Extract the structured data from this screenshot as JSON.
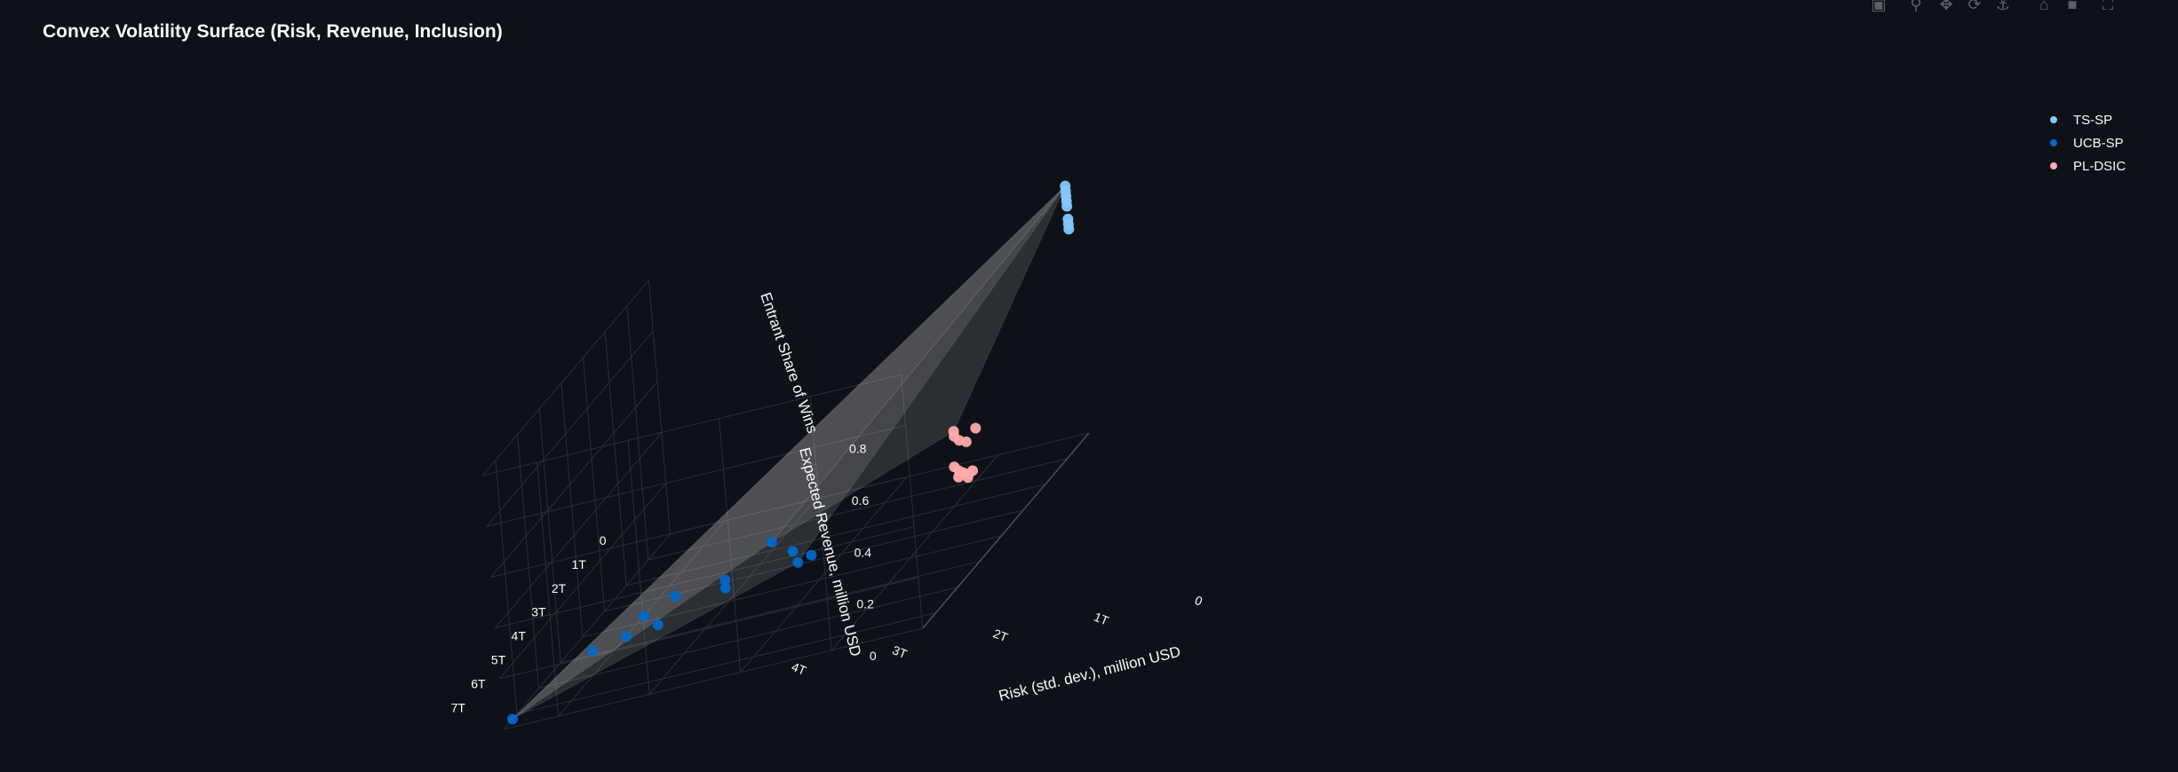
{
  "title": "Convex Volatility Surface (Risk, Revenue, Inclusion)",
  "toolbar": {
    "buttons": [
      {
        "name": "download-plot-as-png",
        "icon": "camera-icon"
      },
      {
        "name": "zoom",
        "icon": "magnifier-icon"
      },
      {
        "name": "pan",
        "icon": "pan-icon"
      },
      {
        "name": "orbital-rotation",
        "icon": "orbit-icon"
      },
      {
        "name": "turntable-rotation",
        "icon": "turntable-icon"
      },
      {
        "name": "reset-camera",
        "icon": "home-icon"
      },
      {
        "name": "reset-camera-last-save",
        "icon": "video-camera-icon"
      },
      {
        "name": "fullscreen",
        "icon": "fullscreen-icon"
      }
    ]
  },
  "colors": {
    "background": "#0e1117",
    "TS-SP": "#83c9ff",
    "UCB-SP": "#0068c9",
    "PL-DSIC": "#ffabab",
    "surface": "#c8c8c8"
  },
  "chart_data": {
    "type": "scatter3d",
    "title": "Convex Volatility Surface (Risk, Revenue, Inclusion)",
    "x_axis": {
      "label": "Risk (std. dev.), million USD",
      "ticks": [
        "0",
        "1T",
        "2T",
        "3T",
        "4T"
      ]
    },
    "y_axis": {
      "label": "Expected Revenue, million USD",
      "ticks": [
        "0",
        "1T",
        "2T",
        "3T",
        "4T",
        "5T",
        "6T",
        "7T"
      ]
    },
    "z_axis": {
      "label": "Entrant Share of Wins",
      "ticks": [
        "0",
        "0.2",
        "0.4",
        "0.6",
        "0.8"
      ]
    },
    "legend_position": "top-right",
    "series": [
      {
        "name": "TS-SP",
        "color": "#83c9ff",
        "points": [
          {
            "x": 0.02,
            "y": 0.05,
            "z": 0.98
          },
          {
            "x": 0.02,
            "y": 0.05,
            "z": 0.96
          },
          {
            "x": 0.02,
            "y": 0.05,
            "z": 0.94
          },
          {
            "x": 0.02,
            "y": 0.05,
            "z": 0.92
          },
          {
            "x": 0.02,
            "y": 0.05,
            "z": 0.9
          },
          {
            "x": 0.02,
            "y": 0.05,
            "z": 0.85
          },
          {
            "x": 0.02,
            "y": 0.05,
            "z": 0.83
          },
          {
            "x": 0.02,
            "y": 0.05,
            "z": 0.81
          }
        ]
      },
      {
        "name": "UCB-SP",
        "color": "#0068c9",
        "points": [
          {
            "x": 4.6,
            "y": 7.2,
            "z": 0.0
          },
          {
            "x": 4.3,
            "y": 4.8,
            "z": 0.0
          },
          {
            "x": 4.0,
            "y": 4.5,
            "z": 0.0
          },
          {
            "x": 3.7,
            "y": 4.3,
            "z": 0.0
          },
          {
            "x": 4.0,
            "y": 3.7,
            "z": 0.0
          },
          {
            "x": 3.8,
            "y": 3.1,
            "z": 0.0
          },
          {
            "x": 3.2,
            "y": 3.3,
            "z": 0.0
          },
          {
            "x": 3.3,
            "y": 2.9,
            "z": 0.0
          },
          {
            "x": 2.7,
            "y": 2.3,
            "z": 0.0
          },
          {
            "x": 2.5,
            "y": 2.9,
            "z": 0.0
          },
          {
            "x": 2.4,
            "y": 2.7,
            "z": 0.0
          },
          {
            "x": 3.1,
            "y": 1.6,
            "z": 0.0
          }
        ]
      },
      {
        "name": "PL-DSIC",
        "color": "#ffabab",
        "points": [
          {
            "x": 1.3,
            "y": 0.6,
            "z": 0.18
          },
          {
            "x": 1.3,
            "y": 0.6,
            "z": 0.16
          },
          {
            "x": 1.25,
            "y": 0.6,
            "z": 0.14
          },
          {
            "x": 1.1,
            "y": 0.45,
            "z": 0.16
          },
          {
            "x": 1.2,
            "y": 0.5,
            "z": 0.12
          },
          {
            "x": 1.3,
            "y": 0.7,
            "z": 0.05
          },
          {
            "x": 1.25,
            "y": 0.7,
            "z": 0.03
          },
          {
            "x": 1.2,
            "y": 0.72,
            "z": 0.02
          },
          {
            "x": 1.15,
            "y": 0.7,
            "z": 0.01
          },
          {
            "x": 1.1,
            "y": 0.72,
            "z": 0.02
          },
          {
            "x": 1.15,
            "y": 0.75,
            "z": 0.0
          },
          {
            "x": 1.25,
            "y": 0.75,
            "z": 0.01
          }
        ]
      }
    ]
  }
}
